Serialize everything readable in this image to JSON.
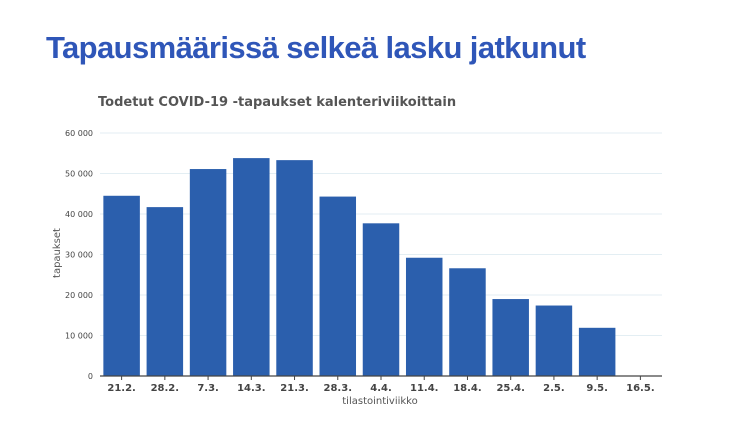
{
  "slide": {
    "title": "Tapausmäärissä selkeä lasku jatkunut"
  },
  "chart_data": {
    "type": "bar",
    "title": "Todetut COVID-19 -tapaukset kalenteriviikoittain",
    "xlabel": "tilastointiviikko",
    "ylabel": "tapaukset",
    "categories": [
      "21.2.",
      "28.2.",
      "7.3.",
      "14.3.",
      "21.3.",
      "28.3.",
      "4.4.",
      "11.4.",
      "18.4.",
      "25.4.",
      "2.5.",
      "9.5.",
      "16.5."
    ],
    "values": [
      44500,
      41700,
      51100,
      53800,
      53300,
      44300,
      37700,
      29200,
      26600,
      19000,
      17400,
      11900,
      null
    ],
    "ylim": [
      0,
      60000
    ],
    "yticks": [
      0,
      10000,
      20000,
      30000,
      40000,
      50000,
      60000
    ],
    "ytick_labels": [
      "0",
      "10 000",
      "20 000",
      "30 000",
      "40 000",
      "50 000",
      "60 000"
    ],
    "grid": true,
    "bar_color": "#2b5fad",
    "grid_color": "#e3eef3"
  }
}
